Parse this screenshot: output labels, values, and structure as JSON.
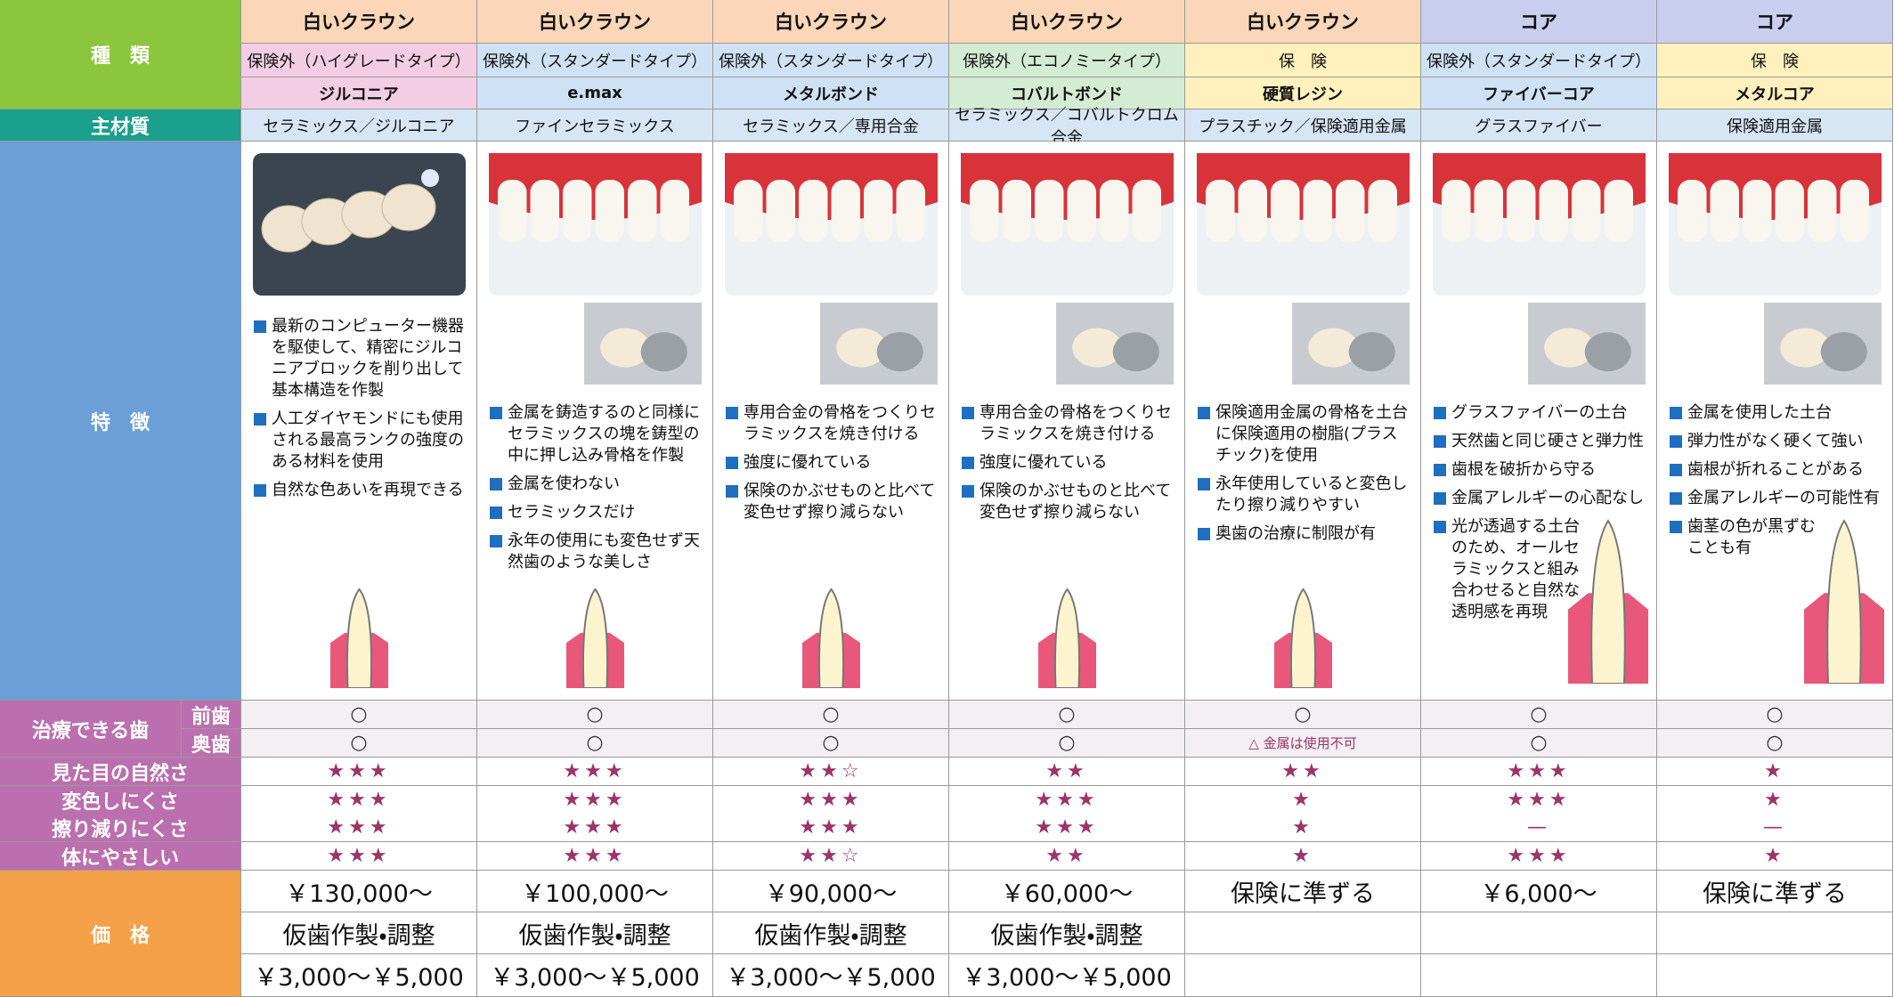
{
  "labels": {
    "kind": "種　類",
    "material": "主材質",
    "features": "特　徴",
    "treatable": "治療できる歯",
    "front": "前歯",
    "back": "奥歯",
    "ratings": [
      "見た目の自然さ",
      "変色しにくさ",
      "擦り減りにくさ",
      "体にやさしい"
    ],
    "price": "価　格"
  },
  "columns": [
    {
      "type": "白いクラウン",
      "category": "保険外（ハイグレードタイプ）",
      "name": "ジルコニア",
      "material": "セラミックス／ジルコニア",
      "features": [
        "最新のコンピューター機器を駆使して、精密にジルコニアブロックを削り出して基本構造を作製",
        "人工ダイヤモンドにも使用される最高ランクの強度のある材料を使用",
        "自然な色あいを再現できる"
      ],
      "front": "○",
      "back": "○",
      "ratings": [
        "★★★",
        "★★★",
        "★★★",
        "★★★"
      ],
      "price": [
        "￥130,000～",
        "仮歯作製・調整",
        "￥3,000～￥5,000"
      ]
    },
    {
      "type": "白いクラウン",
      "category": "保険外（スタンダードタイプ）",
      "name": "e.max",
      "material": "ファインセラミックス",
      "features": [
        "金属を鋳造するのと同様にセラミックスの塊を鋳型の中に押し込み骨格を作製",
        "金属を使わない",
        "セラミックスだけ",
        "永年の使用にも変色せず天然歯のような美しさ"
      ],
      "front": "○",
      "back": "○",
      "ratings": [
        "★★★",
        "★★★",
        "★★★",
        "★★★"
      ],
      "price": [
        "￥100,000～",
        "仮歯作製・調整",
        "￥3,000～￥5,000"
      ]
    },
    {
      "type": "白いクラウン",
      "category": "保険外（スタンダードタイプ）",
      "name": "メタルボンド",
      "material": "セラミックス／専用合金",
      "features": [
        "専用合金の骨格をつくりセラミックスを焼き付ける",
        "強度に優れている",
        "保険のかぶせものと比べて変色せず擦り減らない"
      ],
      "front": "○",
      "back": "○",
      "ratings": [
        "★★☆",
        "★★★",
        "★★★",
        "★★☆"
      ],
      "price": [
        "￥90,000～",
        "仮歯作製・調整",
        "￥3,000～￥5,000"
      ]
    },
    {
      "type": "白いクラウン",
      "category": "保険外（エコノミータイプ）",
      "name": "コバルトボンド",
      "material": "セラミックス／コバルトクロム合金",
      "features": [
        "専用合金の骨格をつくりセラミックスを焼き付ける",
        "強度に優れている",
        "保険のかぶせものと比べて変色せず擦り減らない"
      ],
      "front": "○",
      "back": "○",
      "ratings": [
        "★★",
        "★★★",
        "★★★",
        "★★"
      ],
      "price": [
        "￥60,000～",
        "仮歯作製・調整",
        "￥3,000～￥5,000"
      ]
    },
    {
      "type": "白いクラウン",
      "category": "保　険",
      "name": "硬質レジン",
      "material": "プラスチック／保険適用金属",
      "features": [
        "保険適用金属の骨格を土台に保険適用の樹脂(プラスチック)を使用",
        "永年使用していると変色したり擦り減りやすい",
        "奥歯の治療に制限が有"
      ],
      "front": "○",
      "back": "△ 金属は使用不可",
      "ratings": [
        "★★",
        "★",
        "★",
        "★"
      ],
      "price": [
        "保険に準ずる"
      ]
    },
    {
      "type": "コア",
      "category": "保険外（スタンダードタイプ）",
      "name": "ファイバーコア",
      "material": "グラスファイバー",
      "features": [
        "グラスファイバーの土台",
        "天然歯と同じ硬さと弾力性",
        "歯根を破折から守る",
        "金属アレルギーの心配なし",
        "光が透過する土台のため、オールセラミックスと組み合わせると自然な透明感を再現"
      ],
      "front": "○",
      "back": "○",
      "ratings": [
        "★★★",
        "★★★",
        "—",
        "★★★"
      ],
      "price": [
        "￥6,000～"
      ]
    },
    {
      "type": "コア",
      "category": "保　険",
      "name": "メタルコア",
      "material": "保険適用金属",
      "features": [
        "金属を使用した土台",
        "弾力性がなく硬くて強い",
        "歯根が折れることがある",
        "金属アレルギーの可能性有",
        "歯茎の色が黒ずむことも有"
      ],
      "front": "○",
      "back": "○",
      "ratings": [
        "★",
        "★",
        "—",
        "★"
      ],
      "price": [
        "保険に準ずる"
      ]
    }
  ]
}
